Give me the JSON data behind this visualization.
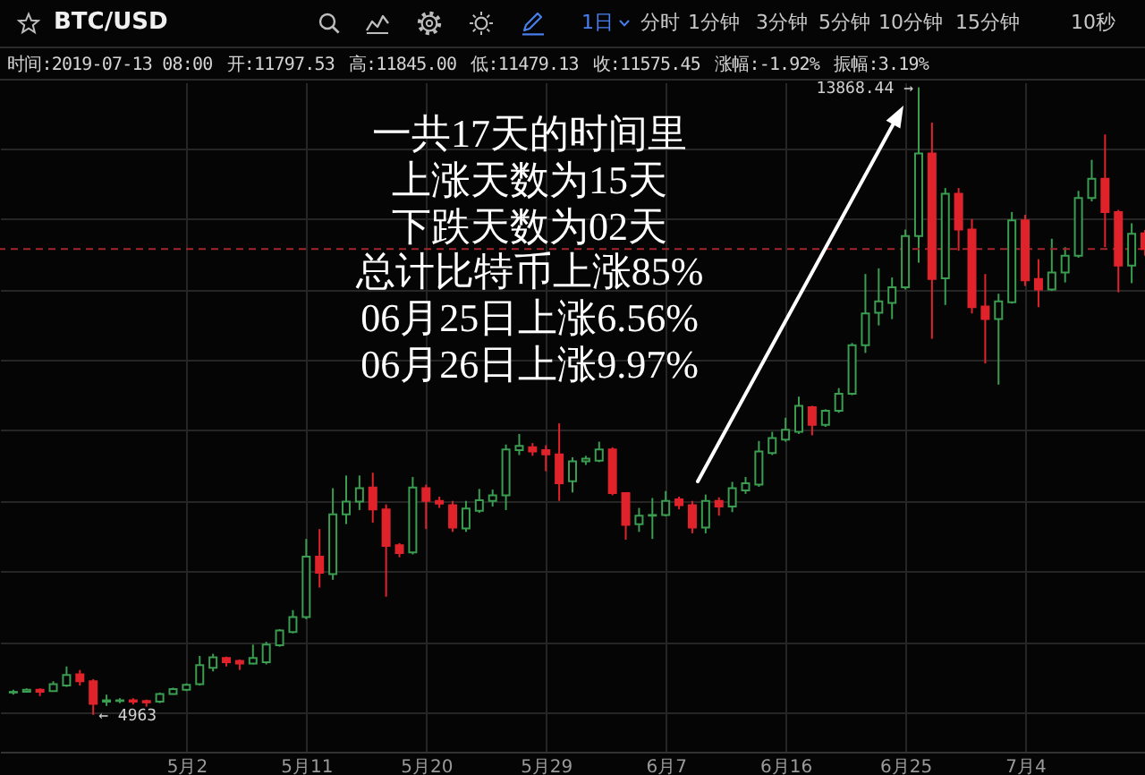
{
  "chart_data": {
    "type": "candlestick",
    "title": "BTC/USD",
    "x": [
      "--04-19",
      "--04-20",
      "--04-21",
      "--04-22",
      "--04-23",
      "--04-24",
      "--04-25",
      "--04-26",
      "--04-27",
      "--04-28",
      "--04-29",
      "--04-30",
      "--05-01",
      "--05-02",
      "--05-03",
      "--05-04",
      "--05-05",
      "--05-06",
      "--05-07",
      "--05-08",
      "--05-09",
      "--05-10",
      "--05-11",
      "--05-12",
      "--05-13",
      "--05-14",
      "--05-15",
      "--05-16",
      "--05-17",
      "--05-18",
      "--05-19",
      "--05-20",
      "--05-21",
      "--05-22",
      "--05-23",
      "--05-24",
      "--05-25",
      "--05-26",
      "--05-27",
      "--05-28",
      "--05-29",
      "--05-30",
      "--05-31",
      "--06-01",
      "--06-02",
      "--06-03",
      "--06-04",
      "--06-05",
      "--06-06",
      "--06-07",
      "--06-08",
      "--06-09",
      "--06-10",
      "--06-11",
      "--06-12",
      "--06-13",
      "--06-14",
      "--06-15",
      "--06-16",
      "--06-17",
      "--06-18",
      "--06-19",
      "--06-20",
      "--06-21",
      "--06-22",
      "--06-23",
      "--06-24",
      "--06-25",
      "--06-26",
      "--06-27",
      "--06-28",
      "--06-29",
      "--06-30",
      "--07-01",
      "--07-02",
      "--07-03",
      "--07-04",
      "--07-05",
      "--07-06",
      "--07-07",
      "--07-08",
      "--07-09",
      "--07-10",
      "--07-11",
      "--07-12",
      "--07-13"
    ],
    "ohlc": [
      [
        5280,
        5320,
        5250,
        5290
      ],
      [
        5290,
        5340,
        5280,
        5320
      ],
      [
        5320,
        5340,
        5230,
        5290
      ],
      [
        5300,
        5440,
        5290,
        5400
      ],
      [
        5380,
        5650,
        5360,
        5530
      ],
      [
        5540,
        5600,
        5380,
        5440
      ],
      [
        5440,
        5470,
        4963,
        5120
      ],
      [
        5150,
        5250,
        5090,
        5170
      ],
      [
        5160,
        5200,
        5130,
        5170
      ],
      [
        5170,
        5200,
        5110,
        5150
      ],
      [
        5160,
        5180,
        5080,
        5140
      ],
      [
        5150,
        5280,
        5130,
        5260
      ],
      [
        5260,
        5350,
        5250,
        5330
      ],
      [
        5320,
        5410,
        5300,
        5390
      ],
      [
        5400,
        5800,
        5380,
        5670
      ],
      [
        5630,
        5830,
        5580,
        5780
      ],
      [
        5770,
        5790,
        5650,
        5710
      ],
      [
        5730,
        5750,
        5600,
        5690
      ],
      [
        5690,
        5960,
        5680,
        5770
      ],
      [
        5710,
        6000,
        5680,
        5960
      ],
      [
        5950,
        6180,
        5930,
        6160
      ],
      [
        6140,
        6450,
        6120,
        6350
      ],
      [
        6350,
        7460,
        6320,
        7210
      ],
      [
        7210,
        7600,
        6770,
        6980
      ],
      [
        6960,
        8180,
        6880,
        7810
      ],
      [
        7810,
        8360,
        7670,
        7990
      ],
      [
        7990,
        8360,
        7870,
        8180
      ],
      [
        8190,
        8400,
        7690,
        7880
      ],
      [
        7880,
        7950,
        6640,
        7360
      ],
      [
        7370,
        7400,
        7200,
        7260
      ],
      [
        7270,
        8340,
        7240,
        8190
      ],
      [
        8180,
        8230,
        7600,
        8000
      ],
      [
        8000,
        8060,
        7900,
        7960
      ],
      [
        7940,
        8000,
        7560,
        7620
      ],
      [
        7610,
        8000,
        7560,
        7890
      ],
      [
        7860,
        8170,
        7830,
        8010
      ],
      [
        8000,
        8160,
        7920,
        8080
      ],
      [
        8080,
        8800,
        7870,
        8730
      ],
      [
        8720,
        8950,
        8650,
        8780
      ],
      [
        8760,
        8820,
        8640,
        8700
      ],
      [
        8720,
        8790,
        8420,
        8660
      ],
      [
        8660,
        9100,
        8000,
        8250
      ],
      [
        8280,
        8620,
        8120,
        8560
      ],
      [
        8560,
        8640,
        8510,
        8600
      ],
      [
        8570,
        8840,
        8550,
        8730
      ],
      [
        8730,
        8760,
        8080,
        8110
      ],
      [
        8110,
        8120,
        7450,
        7660
      ],
      [
        7670,
        7900,
        7560,
        7790
      ],
      [
        7790,
        8040,
        7460,
        7800
      ],
      [
        7800,
        8140,
        7780,
        8000
      ],
      [
        8020,
        8060,
        7880,
        7940
      ],
      [
        7940,
        8000,
        7540,
        7620
      ],
      [
        7620,
        8090,
        7540,
        8000
      ],
      [
        8000,
        8050,
        7790,
        7920
      ],
      [
        7920,
        8270,
        7840,
        8180
      ],
      [
        8150,
        8340,
        8100,
        8250
      ],
      [
        8230,
        8850,
        8200,
        8700
      ],
      [
        8680,
        8980,
        8650,
        8890
      ],
      [
        8870,
        9180,
        8840,
        9010
      ],
      [
        8980,
        9480,
        8950,
        9350
      ],
      [
        9330,
        9350,
        8930,
        9080
      ],
      [
        9080,
        9300,
        9050,
        9280
      ],
      [
        9280,
        9600,
        9250,
        9520
      ],
      [
        9520,
        10240,
        9500,
        10210
      ],
      [
        10210,
        11220,
        10100,
        10660
      ],
      [
        10670,
        11300,
        10490,
        10830
      ],
      [
        10810,
        11170,
        10580,
        11030
      ],
      [
        11030,
        11850,
        11000,
        11760
      ],
      [
        11760,
        13868.44,
        11380,
        12930
      ],
      [
        12930,
        13370,
        10300,
        11150
      ],
      [
        11160,
        12440,
        10780,
        12360
      ],
      [
        12360,
        12440,
        11550,
        11850
      ],
      [
        11850,
        12000,
        10660,
        10750
      ],
      [
        10760,
        11220,
        9950,
        10580
      ],
      [
        10580,
        10940,
        9650,
        10830
      ],
      [
        10820,
        12100,
        10800,
        11980
      ],
      [
        11980,
        12060,
        11050,
        11130
      ],
      [
        11150,
        11430,
        10750,
        11000
      ],
      [
        11000,
        11720,
        10980,
        11240
      ],
      [
        11240,
        11600,
        11100,
        11480
      ],
      [
        11480,
        12400,
        11450,
        12300
      ],
      [
        12300,
        12840,
        12250,
        12570
      ],
      [
        12570,
        13200,
        11600,
        12100
      ],
      [
        12100,
        12130,
        10960,
        11340
      ],
      [
        11340,
        11940,
        11090,
        11790
      ],
      [
        11797.53,
        11845.0,
        11479.13,
        11575.45
      ]
    ],
    "colors": [
      "#3a9d50",
      "#3a9d50",
      "#e0232b",
      "#3a9d50",
      "#3a9d50",
      "#e0232b",
      "#e0232b",
      "#3a9d50",
      "#3a9d50",
      "#e0232b",
      "#e0232b",
      "#3a9d50",
      "#3a9d50",
      "#3a9d50",
      "#3a9d50",
      "#3a9d50",
      "#e0232b",
      "#e0232b",
      "#3a9d50",
      "#3a9d50",
      "#3a9d50",
      "#3a9d50",
      "#3a9d50",
      "#e0232b",
      "#3a9d50",
      "#3a9d50",
      "#3a9d50",
      "#e0232b",
      "#e0232b",
      "#e0232b",
      "#3a9d50",
      "#e0232b",
      "#e0232b",
      "#e0232b",
      "#3a9d50",
      "#3a9d50",
      "#3a9d50",
      "#3a9d50",
      "#3a9d50",
      "#e0232b",
      "#e0232b",
      "#e0232b",
      "#3a9d50",
      "#3a9d50",
      "#3a9d50",
      "#e0232b",
      "#e0232b",
      "#3a9d50",
      "#3a9d50",
      "#3a9d50",
      "#e0232b",
      "#e0232b",
      "#3a9d50",
      "#e0232b",
      "#3a9d50",
      "#3a9d50",
      "#3a9d50",
      "#3a9d50",
      "#3a9d50",
      "#3a9d50",
      "#e0232b",
      "#3a9d50",
      "#3a9d50",
      "#3a9d50",
      "#3a9d50",
      "#3a9d50",
      "#3a9d50",
      "#3a9d50",
      "#3a9d50",
      "#e0232b",
      "#3a9d50",
      "#e0232b",
      "#e0232b",
      "#e0232b",
      "#3a9d50",
      "#3a9d50",
      "#e0232b",
      "#e0232b",
      "#3a9d50",
      "#3a9d50",
      "#3a9d50",
      "#3a9d50",
      "#e0232b",
      "#e0232b",
      "#3a9d50",
      "#e0232b"
    ],
    "xlim": [
      "--04-18",
      "--07-13"
    ],
    "xticks": [
      {
        "value": "--05-02",
        "label": "5月2"
      },
      {
        "value": "--05-11",
        "label": "5月11"
      },
      {
        "value": "--05-20",
        "label": "5月20"
      },
      {
        "value": "--05-29",
        "label": "5月29"
      },
      {
        "value": "--06-07",
        "label": "6月7"
      },
      {
        "value": "--06-16",
        "label": "6月16"
      },
      {
        "value": "--06-25",
        "label": "6月25"
      },
      {
        "value": "--07-04",
        "label": "7月4"
      }
    ],
    "ylim": [
      4440,
      13940
    ],
    "yticks": [
      {
        "value": 5000,
        "label": null
      },
      {
        "value": 6000,
        "label": null
      },
      {
        "value": 7000,
        "label": null
      },
      {
        "value": 8000,
        "label": null
      },
      {
        "value": 9000,
        "label": null
      },
      {
        "value": 10000,
        "label": null
      },
      {
        "value": 11000,
        "label": null
      },
      {
        "value": 12000,
        "label": null
      },
      {
        "value": 13000,
        "label": null
      }
    ],
    "tick_labels": "x",
    "grid": true,
    "ref_lines": [
      {
        "axis": "y",
        "value": 11575.45,
        "color": "#a3262c",
        "line_style": "dashed"
      }
    ],
    "annotations": [
      "1日",
      "分时",
      "1分钟",
      "3分钟",
      "5分钟",
      "10分钟",
      "15分钟",
      "10秒",
      "时间:2019-07-13 08:00",
      "开:11797.53",
      "高:11845.00",
      "低:11479.13",
      "收:11575.45",
      "涨幅:-1.92%",
      "振幅:3.19%",
      "一共17天的时间里",
      "上涨天数为15天",
      "下跌天数为02天",
      "总计比特币上涨85%",
      "06月25日上涨6.56%",
      "06月26日上涨9.97%",
      {
        "text": "13868.44 →",
        "x": "--06-26",
        "y": 13868.44
      },
      {
        "text": "← 4963",
        "x": "--04-25",
        "y": 4963
      }
    ]
  }
}
